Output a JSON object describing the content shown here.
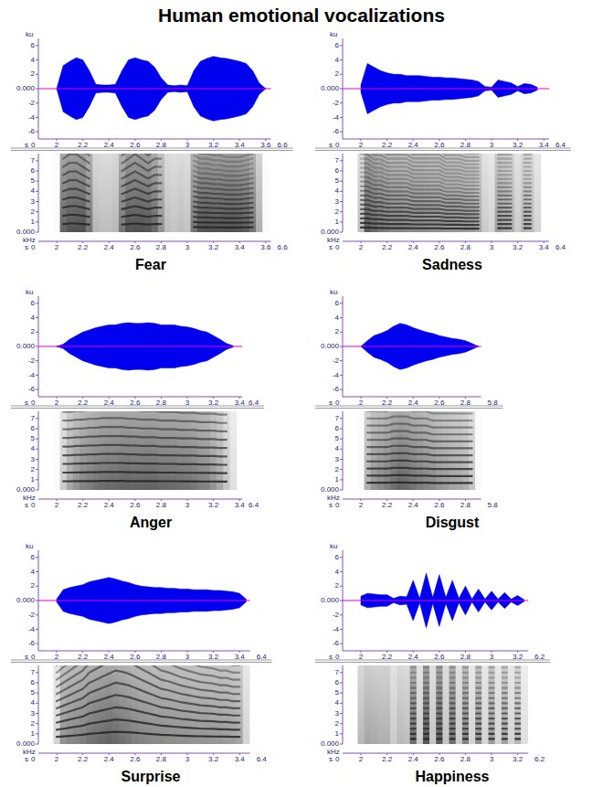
{
  "title": "Human emotional vocalizations",
  "chart_data": [
    {
      "type": "waveform",
      "title": "Fear",
      "xlabel": "s",
      "file_range": [
        0,
        6.6
      ],
      "xlim": [
        1.86,
        3.64
      ],
      "xticks": [
        2,
        2.2,
        2.4,
        2.6,
        2.8,
        3,
        3.2,
        3.4,
        3.6
      ],
      "x": [
        2,
        2.05,
        2.1,
        2.15,
        2.2,
        2.25,
        2.3,
        2.35,
        2.4,
        2.45,
        2.5,
        2.55,
        2.6,
        2.65,
        2.7,
        2.75,
        2.8,
        2.85,
        2.9,
        2.95,
        3,
        3.05,
        3.1,
        3.15,
        3.2,
        3.25,
        3.3,
        3.35,
        3.4,
        3.45,
        3.5,
        3.55,
        3.6
      ],
      "waveform": {
        "ylabel": "ku",
        "color": "#0000ee",
        "ylim": [
          -7,
          7
        ],
        "yticks": [
          -6,
          -4,
          -2,
          {
            "value": 0,
            "label": "0.000"
          },
          2,
          4,
          6
        ],
        "values": [
          0,
          3.2,
          3.8,
          4.3,
          4.0,
          2.5,
          0.6,
          0.5,
          0.5,
          0.6,
          2.5,
          4.0,
          4.3,
          4.0,
          3.8,
          3.0,
          1.5,
          0.5,
          0.4,
          0.5,
          0.4,
          2.5,
          3.8,
          4.2,
          4.5,
          4.3,
          4.2,
          4.0,
          3.8,
          3.5,
          2.5,
          0.8,
          0
        ]
      },
      "spectrogram": {
        "ylabel": "kHz",
        "color": "#222222",
        "ylim": [
          0,
          7.7
        ],
        "yticks": [
          {
            "value": 0,
            "label": "0.000"
          },
          1,
          2,
          3,
          4,
          5,
          6,
          7
        ],
        "values": [
          null,
          0.8,
          0.85,
          0.85,
          0.8,
          0.75,
          null,
          null,
          null,
          null,
          0.75,
          0.8,
          0.85,
          0.8,
          0.75,
          0.8,
          0.8,
          null,
          null,
          null,
          null,
          0.5,
          0.48,
          0.48,
          0.47,
          0.47,
          0.46,
          0.46,
          0.46,
          0.47,
          0.48,
          null,
          null
        ]
      }
    },
    {
      "type": "waveform",
      "title": "Sadness",
      "xlabel": "s",
      "file_range": [
        0,
        6.4
      ],
      "xlim": [
        1.86,
        3.44
      ],
      "xticks": [
        2,
        2.2,
        2.4,
        2.6,
        2.8,
        3,
        3.2,
        3.4
      ],
      "x": [
        2,
        2.05,
        2.1,
        2.15,
        2.2,
        2.25,
        2.3,
        2.35,
        2.4,
        2.45,
        2.5,
        2.55,
        2.6,
        2.65,
        2.7,
        2.75,
        2.8,
        2.85,
        2.9,
        2.95,
        3,
        3.05,
        3.1,
        3.15,
        3.2,
        3.25,
        3.3,
        3.35
      ],
      "waveform": {
        "ylabel": "ku",
        "color": "#0000ee",
        "ylim": [
          -7,
          7
        ],
        "yticks": [
          -6,
          -4,
          -2,
          {
            "value": 0,
            "label": "0.000"
          },
          2,
          4,
          6
        ],
        "values": [
          0.5,
          3.5,
          3.0,
          2.5,
          2.2,
          2.0,
          2.0,
          1.8,
          1.8,
          1.8,
          1.7,
          1.6,
          1.6,
          1.5,
          1.5,
          1.4,
          1.3,
          1.2,
          1.0,
          0.3,
          0.2,
          1.2,
          1.0,
          0.8,
          0.3,
          0.7,
          0.6,
          0.2
        ]
      },
      "spectrogram": {
        "ylabel": "kHz",
        "color": "#222222",
        "ylim": [
          0,
          7.7
        ],
        "yticks": [
          {
            "value": 0,
            "label": "0.000"
          },
          1,
          2,
          3,
          4,
          5,
          6,
          7
        ],
        "values": [
          0.45,
          0.45,
          0.42,
          0.42,
          0.4,
          0.4,
          0.4,
          0.4,
          0.38,
          0.38,
          0.38,
          0.38,
          0.38,
          0.36,
          0.36,
          0.36,
          0.35,
          0.35,
          0.35,
          null,
          null,
          0.4,
          0.4,
          0.4,
          null,
          0.4,
          0.4,
          null
        ]
      }
    },
    {
      "type": "waveform",
      "title": "Anger",
      "xlabel": "s",
      "file_range": [
        0,
        6.4
      ],
      "xlim": [
        1.86,
        3.42
      ],
      "xticks": [
        2,
        2.2,
        2.4,
        2.6,
        2.8,
        3,
        3.2,
        3.4
      ],
      "x": [
        2,
        2.05,
        2.1,
        2.15,
        2.2,
        2.25,
        2.3,
        2.35,
        2.4,
        2.45,
        2.5,
        2.55,
        2.6,
        2.65,
        2.7,
        2.75,
        2.8,
        2.85,
        2.9,
        2.95,
        3,
        3.05,
        3.1,
        3.15,
        3.2,
        3.25,
        3.3,
        3.35
      ],
      "waveform": {
        "ylabel": "ku",
        "color": "#0000ee",
        "ylim": [
          -7,
          7
        ],
        "yticks": [
          -6,
          -4,
          -2,
          {
            "value": 0,
            "label": "0.000"
          },
          2,
          4,
          6
        ],
        "values": [
          0,
          0.3,
          1.0,
          1.5,
          2.0,
          2.3,
          2.6,
          2.8,
          3.0,
          3.0,
          3.2,
          3.3,
          3.2,
          3.2,
          3.3,
          3.2,
          3.0,
          3.0,
          3.0,
          2.8,
          2.7,
          2.5,
          2.2,
          2.0,
          1.5,
          1.0,
          0.4,
          0.1
        ]
      },
      "spectrogram": {
        "ylabel": "kHz",
        "color": "#222222",
        "ylim": [
          0,
          7.7
        ],
        "yticks": [
          {
            "value": 0,
            "label": "0.000"
          },
          1,
          2,
          3,
          4,
          5,
          6,
          7
        ],
        "values": [
          null,
          0.85,
          0.85,
          0.86,
          0.86,
          0.87,
          0.87,
          0.88,
          0.88,
          0.88,
          0.88,
          0.87,
          0.87,
          0.86,
          0.86,
          0.86,
          0.85,
          0.85,
          0.85,
          0.84,
          0.84,
          0.84,
          0.83,
          0.83,
          0.83,
          0.82,
          0.82,
          null
        ]
      }
    },
    {
      "type": "waveform",
      "title": "Disgust",
      "xlabel": "s",
      "file_range": [
        0,
        5.8
      ],
      "xlim": [
        1.86,
        2.92
      ],
      "xticks": [
        2,
        2.2,
        2.4,
        2.6,
        2.8
      ],
      "x": [
        2,
        2.05,
        2.1,
        2.15,
        2.2,
        2.25,
        2.3,
        2.35,
        2.4,
        2.45,
        2.5,
        2.55,
        2.6,
        2.65,
        2.7,
        2.75,
        2.8,
        2.85,
        2.9
      ],
      "waveform": {
        "ylabel": "ku",
        "color": "#0000ee",
        "ylim": [
          -7,
          7
        ],
        "yticks": [
          -6,
          -4,
          -2,
          {
            "value": 0,
            "label": "0.000"
          },
          2,
          4,
          6
        ],
        "values": [
          0,
          0.8,
          1.5,
          1.8,
          2.2,
          2.8,
          3.2,
          3.0,
          2.6,
          2.3,
          2.0,
          1.8,
          1.5,
          1.3,
          1.1,
          1.0,
          0.8,
          0.4,
          0
        ]
      },
      "spectrogram": {
        "ylabel": "kHz",
        "color": "#222222",
        "ylim": [
          0,
          7.7
        ],
        "yticks": [
          {
            "value": 0,
            "label": "0.000"
          },
          1,
          2,
          3,
          4,
          5,
          6,
          7
        ],
        "values": [
          null,
          0.7,
          0.7,
          0.7,
          0.7,
          0.72,
          0.72,
          0.72,
          0.7,
          0.7,
          0.7,
          0.68,
          0.68,
          0.68,
          0.68,
          0.68,
          0.68,
          0.68,
          null
        ]
      }
    },
    {
      "type": "waveform",
      "title": "Surprise",
      "xlabel": "s",
      "file_range": [
        0,
        6.4
      ],
      "xlim": [
        1.86,
        3.48
      ],
      "xticks": [
        2,
        2.2,
        2.4,
        2.6,
        2.8,
        3,
        3.2,
        3.4
      ],
      "x": [
        2,
        2.05,
        2.1,
        2.15,
        2.2,
        2.25,
        2.3,
        2.35,
        2.4,
        2.45,
        2.5,
        2.55,
        2.6,
        2.65,
        2.7,
        2.75,
        2.8,
        2.85,
        2.9,
        2.95,
        3,
        3.05,
        3.1,
        3.15,
        3.2,
        3.25,
        3.3,
        3.35,
        3.4,
        3.45
      ],
      "waveform": {
        "ylabel": "ku",
        "color": "#0000ee",
        "ylim": [
          -7,
          7
        ],
        "yticks": [
          -6,
          -4,
          -2,
          {
            "value": 0,
            "label": "0.000"
          },
          2,
          4,
          6
        ],
        "values": [
          0.2,
          1.5,
          1.8,
          2.0,
          2.2,
          2.6,
          2.8,
          3.0,
          3.2,
          3.0,
          2.7,
          2.5,
          2.2,
          2.0,
          1.9,
          1.8,
          1.8,
          1.7,
          1.7,
          1.6,
          1.6,
          1.5,
          1.5,
          1.5,
          1.4,
          1.4,
          1.3,
          1.2,
          1.0,
          0.2
        ]
      },
      "spectrogram": {
        "ylabel": "kHz",
        "color": "#222222",
        "ylim": [
          0,
          7.7
        ],
        "yticks": [
          {
            "value": 0,
            "label": "0.000"
          },
          1,
          2,
          3,
          4,
          5,
          6,
          7
        ],
        "values": [
          0.7,
          0.75,
          0.8,
          0.85,
          0.9,
          1.0,
          1.05,
          1.1,
          1.15,
          1.2,
          1.18,
          1.15,
          1.1,
          1.05,
          1.0,
          0.95,
          0.9,
          0.88,
          0.85,
          0.82,
          0.8,
          0.78,
          0.76,
          0.75,
          0.74,
          0.72,
          0.72,
          0.7,
          0.7,
          null
        ]
      }
    },
    {
      "type": "waveform",
      "title": "Happiness",
      "xlabel": "s",
      "file_range": [
        0,
        6.2
      ],
      "xlim": [
        1.86,
        3.28
      ],
      "xticks": [
        2,
        2.2,
        2.4,
        2.6,
        2.8,
        3,
        3.2
      ],
      "x": [
        2,
        2.05,
        2.1,
        2.15,
        2.2,
        2.25,
        2.3,
        2.35,
        2.4,
        2.45,
        2.5,
        2.55,
        2.6,
        2.65,
        2.7,
        2.75,
        2.8,
        2.85,
        2.9,
        2.95,
        3,
        3.05,
        3.1,
        3.15,
        3.2,
        3.25
      ],
      "waveform": {
        "ylabel": "ku",
        "color": "#0000ee",
        "ylim": [
          -7,
          7
        ],
        "yticks": [
          -6,
          -4,
          -2,
          {
            "value": 0,
            "label": "0.000"
          },
          2,
          4,
          6
        ],
        "values": [
          0.6,
          1.0,
          0.9,
          0.8,
          0.8,
          0.3,
          0.6,
          0.5,
          2.8,
          0.3,
          3.8,
          0.4,
          3.6,
          0.4,
          2.8,
          0.3,
          2.0,
          0.2,
          1.6,
          0.2,
          1.3,
          0.2,
          1.1,
          0.2,
          0.7,
          0.1
        ]
      },
      "spectrogram": {
        "ylabel": "kHz",
        "color": "#222222",
        "ylim": [
          0,
          7.7
        ],
        "yticks": [
          {
            "value": 0,
            "label": "0.000"
          },
          1,
          2,
          3,
          4,
          5,
          6,
          7
        ],
        "values": [
          null,
          null,
          null,
          null,
          null,
          null,
          null,
          null,
          0.5,
          null,
          0.5,
          null,
          0.5,
          null,
          0.5,
          null,
          0.5,
          null,
          0.5,
          null,
          0.5,
          null,
          0.5,
          null,
          0.5,
          null
        ]
      }
    }
  ]
}
